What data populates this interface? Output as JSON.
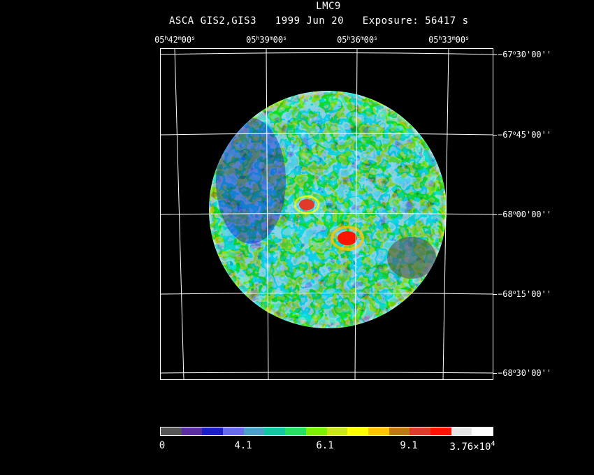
{
  "title": "LMC9",
  "subtitle": "ASCA GIS2,GIS3   1999 Jun 20   Exposure: 56417 s",
  "ra_labels": [
    {
      "h": "05",
      "m": "42",
      "s": "00"
    },
    {
      "h": "05",
      "m": "39",
      "s": "00"
    },
    {
      "h": "05",
      "m": "36",
      "s": "00"
    },
    {
      "h": "05",
      "m": "33",
      "s": "00"
    }
  ],
  "dec_labels": [
    {
      "d": "−67",
      "m": "30",
      "s": "00"
    },
    {
      "d": "−67",
      "m": "45",
      "s": "00"
    },
    {
      "d": "−68",
      "m": "00",
      "s": "00"
    },
    {
      "d": "−68",
      "m": "15",
      "s": "00"
    },
    {
      "d": "−68",
      "m": "30",
      "s": "00"
    }
  ],
  "colorbar": {
    "colors": [
      "#555555",
      "#5a2ea0",
      "#1c1cc8",
      "#6a6af0",
      "#4aa0c8",
      "#10c8a0",
      "#22e060",
      "#7cf000",
      "#c8e61a",
      "#ffff00",
      "#ffc400",
      "#c07a10",
      "#e03a2a",
      "#ff1400",
      "#e6e6e6",
      "#ffffff"
    ],
    "labels": [
      "0",
      "4.1",
      "6.1",
      "9.1"
    ],
    "max_label_mantissa": "3.76×10",
    "max_label_exp": "4"
  }
}
